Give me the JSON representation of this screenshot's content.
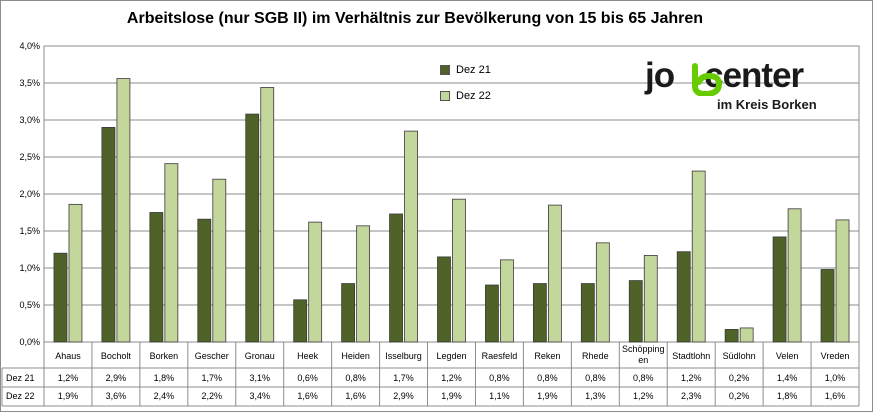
{
  "chart_data": {
    "type": "bar",
    "title": "Arbeitslose (nur SGB II) im Verhältnis zur Bevölkerung von 15 bis 65 Jahren",
    "categories": [
      "Ahaus",
      "Bocholt",
      "Borken",
      "Gescher",
      "Gronau",
      "Heek",
      "Heiden",
      "Isselburg",
      "Legden",
      "Raesfeld",
      "Reken",
      "Rhede",
      "Schöpping\nen",
      "Stadtlohn",
      "Südlohn",
      "Velen",
      "Vreden"
    ],
    "series": [
      {
        "name": "Dez 21",
        "color": "#4f6228",
        "values": [
          1.2,
          2.9,
          1.75,
          1.66,
          3.08,
          0.57,
          0.79,
          1.73,
          1.15,
          0.77,
          0.79,
          0.79,
          0.83,
          1.22,
          0.17,
          1.42,
          0.98
        ],
        "labels": [
          "1,2%",
          "2,9%",
          "1,8%",
          "1,7%",
          "3,1%",
          "0,6%",
          "0,8%",
          "1,7%",
          "1,2%",
          "0,8%",
          "0,8%",
          "0,8%",
          "0,8%",
          "1,2%",
          "0,2%",
          "1,4%",
          "1,0%"
        ]
      },
      {
        "name": "Dez 22",
        "color": "#c3d69b",
        "values": [
          1.86,
          3.56,
          2.41,
          2.2,
          3.44,
          1.62,
          1.57,
          2.85,
          1.93,
          1.11,
          1.85,
          1.34,
          1.17,
          2.31,
          0.19,
          1.8,
          1.65
        ],
        "labels": [
          "1,9%",
          "3,6%",
          "2,4%",
          "2,2%",
          "3,4%",
          "1,6%",
          "1,6%",
          "2,9%",
          "1,9%",
          "1,1%",
          "1,9%",
          "1,3%",
          "1,2%",
          "2,3%",
          "0,2%",
          "1,8%",
          "1,6%"
        ]
      }
    ],
    "ylim": [
      0,
      4.0
    ],
    "yticks": [
      "0,0%",
      "0,5%",
      "1,0%",
      "1,5%",
      "2,0%",
      "2,5%",
      "3,0%",
      "3,5%",
      "4,0%"
    ],
    "grid": true,
    "legend_position": "top-center",
    "data_table": true
  },
  "logo": {
    "main_left": "jo",
    "main_right": "center",
    "sub": "im Kreis Borken",
    "accent": "#66cc00"
  }
}
